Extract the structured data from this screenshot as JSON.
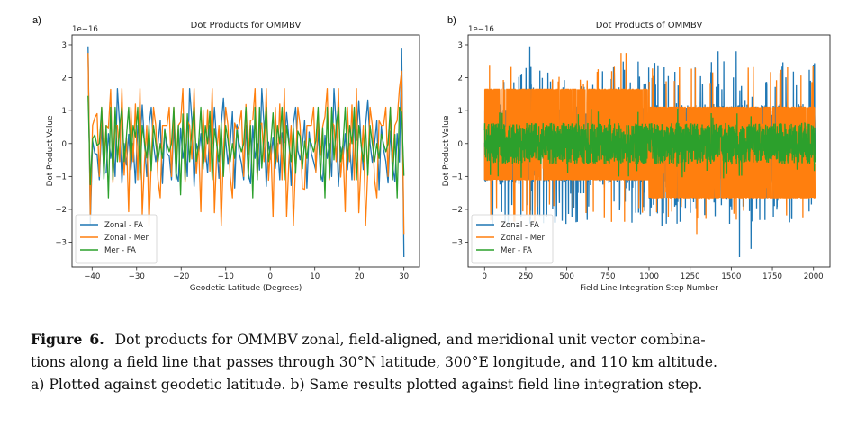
{
  "figure": {
    "label": "Figure",
    "number": "6.",
    "caption_lines": [
      "Dot products for OMMBV zonal, field-aligned, and meridional unit vector combina-",
      "tions along a field line that passes through 30°N latitude, 300°E longitude, and 110 km altitude.",
      "a) Plotted against geodetic latitude. b) Same results plotted against field line integration step."
    ]
  },
  "colors": {
    "zonal_fa": "#1f77b4",
    "zonal_mer": "#ff7f0e",
    "mer_fa": "#2ca02c",
    "axis": "#262626"
  },
  "chart_data": [
    {
      "panel_label": "a)",
      "type": "line",
      "title": "Dot Products for OMMBV",
      "xlabel": "Geodetic Latitude (Degrees)",
      "ylabel": "Dot Product Value",
      "offset_text": "1e−16",
      "xlim": [
        -44.5,
        33.5
      ],
      "ylim": [
        -3.75,
        3.3
      ],
      "xticks": [
        -40,
        -30,
        -20,
        -10,
        0,
        10,
        20,
        30
      ],
      "xtick_labels": [
        "−40",
        "−30",
        "−20",
        "−10",
        "0",
        "10",
        "20",
        "30"
      ],
      "yticks": [
        -3,
        -2,
        -1,
        0,
        1,
        2,
        3
      ],
      "ytick_labels": [
        "−3",
        "−2",
        "−1",
        "0",
        "1",
        "2",
        "3"
      ],
      "grid": false,
      "legend": "lower-left",
      "x_range": [
        -40.9,
        30.0
      ],
      "point_count": 141,
      "quantization_step": 0.555,
      "series": [
        {
          "name": "Zonal - FA",
          "color_key": "zonal_fa",
          "end_spikes": {
            "start": [
              2.95,
              -2.45
            ],
            "end": [
              2.9,
              -3.45
            ]
          },
          "peak_range": [
            -1.4,
            1.67
          ],
          "representative_values": [
            0.7,
            -1.35,
            0.35,
            -0.3,
            -0.55,
            -1.1,
            0.55,
            -0.9,
            -1.15,
            0.3,
            -0.45,
            0.0,
            -1.0,
            1.67,
            0.55,
            -1.3,
            0.0,
            -0.55,
            0.3,
            -0.8,
            0.0,
            -1.1,
            0.55,
            0.0,
            1.1,
            0.0,
            -1.0,
            0.55,
            1.1,
            0.0,
            -0.55,
            0.0
          ]
        },
        {
          "name": "Zonal - Mer",
          "color_key": "zonal_mer",
          "end_spikes": {
            "start": [
              2.75,
              -2.2
            ],
            "end": [
              2.2,
              -2.75
            ]
          },
          "peak_range": [
            -2.5,
            1.67
          ],
          "representative_values": [
            -1.65,
            0.55,
            0.55,
            0.55,
            1.1,
            -1.0,
            1.1,
            -0.55,
            0.55,
            0.55,
            1.67,
            -1.1,
            0.55,
            0.55,
            -0.55,
            1.67,
            -1.1,
            0.0,
            -2.07,
            1.1,
            -0.55,
            1.2,
            -1.1,
            1.67,
            -2.1,
            -0.55,
            0.55,
            -2.5,
            -0.55,
            1.1,
            0.55,
            -1.1
          ]
        },
        {
          "name": "Mer - FA",
          "color_key": "mer_fa",
          "end_spikes": {
            "start": [
              1.45,
              -1.25
            ],
            "end": [
              0.95,
              -0.98
            ]
          },
          "peak_range": [
            -1.65,
            1.1
          ],
          "representative_values": [
            0.0,
            -0.45,
            0.15,
            0.0,
            -0.25,
            0.0,
            1.1,
            -1.1,
            0.55,
            -1.65,
            1.1,
            -1.1,
            1.1,
            -0.55,
            0.55,
            1.1,
            -0.55,
            0.0,
            1.1,
            -0.55,
            0.55,
            0.0,
            1.1,
            -1.1,
            0.55,
            0.0,
            -0.55,
            0.55,
            -1.0,
            0.55,
            0.0,
            -0.55
          ]
        }
      ]
    },
    {
      "panel_label": "b)",
      "type": "line",
      "title": "Dot Products of OMMBV",
      "xlabel": "Field Line Integration Step Number",
      "ylabel": "Dot Product Value",
      "offset_text": "1e−16",
      "xlim": [
        -100,
        2100
      ],
      "ylim": [
        -3.75,
        3.3
      ],
      "xticks": [
        0,
        250,
        500,
        750,
        1000,
        1250,
        1500,
        1750,
        2000
      ],
      "xtick_labels": [
        "0",
        "250",
        "500",
        "750",
        "1000",
        "1250",
        "1500",
        "1750",
        "2000"
      ],
      "yticks": [
        -3,
        -2,
        -1,
        0,
        1,
        2,
        3
      ],
      "ytick_labels": [
        "−3",
        "−2",
        "−1",
        "0",
        "1",
        "2",
        "3"
      ],
      "grid": false,
      "legend": "lower-left",
      "x_range": [
        0,
        2010
      ],
      "series": [
        {
          "name": "Zonal - FA",
          "color_key": "zonal_fa",
          "band": [
            -1.1,
            1.1
          ],
          "peak_range": [
            -3.45,
            2.95
          ],
          "notable_peaks": [
            {
              "x": 275,
              "y": 2.95
            },
            {
              "x": 1420,
              "y": 2.8
            },
            {
              "x": 1530,
              "y": 2.8
            },
            {
              "x": 1550,
              "y": -3.45
            },
            {
              "x": 1620,
              "y": -3.2
            },
            {
              "x": 50,
              "y": -2.5
            }
          ]
        },
        {
          "name": "Zonal - Mer",
          "color_key": "zonal_mer",
          "band_first_half": [
            -1.1,
            1.65
          ],
          "band_second_half": [
            -1.65,
            1.1
          ],
          "peak_range": [
            -2.75,
            2.75
          ],
          "notable_peaks": [
            {
              "x": 830,
              "y": 2.75
            },
            {
              "x": 860,
              "y": 2.75
            },
            {
              "x": 960,
              "y": -2.1
            },
            {
              "x": 1290,
              "y": -2.75
            }
          ]
        },
        {
          "name": "Mer - FA",
          "color_key": "mer_fa",
          "band": [
            -0.6,
            0.6
          ],
          "peak_range": [
            -1.1,
            1.15
          ]
        }
      ]
    }
  ]
}
